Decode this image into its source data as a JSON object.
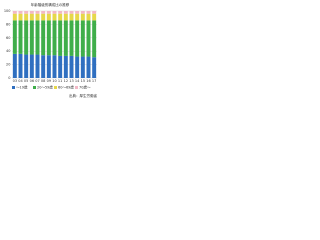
{
  "chart_data": {
    "type": "stacked-bar",
    "title": "年齢階級別構成比の推移",
    "categories": [
      "03",
      "04",
      "05",
      "06",
      "07",
      "08",
      "09",
      "10",
      "11",
      "12",
      "13",
      "14",
      "15",
      "16",
      "17"
    ],
    "series": [
      {
        "name": "〜19歳",
        "color": "#2f6fc0",
        "values": [
          36,
          36,
          35,
          35,
          35,
          34,
          34,
          34,
          33,
          33,
          33,
          32,
          32,
          32,
          31
        ]
      },
      {
        "name": "20〜59歳",
        "color": "#3fae4a",
        "values": [
          50,
          50,
          51,
          51,
          51,
          52,
          52,
          52,
          53,
          53,
          53,
          54,
          54,
          54,
          55
        ]
      },
      {
        "name": "60〜69歳",
        "color": "#e6d84a",
        "values": [
          10,
          10,
          10,
          10,
          10,
          10,
          10,
          10,
          10,
          10,
          10,
          10,
          10,
          10,
          10
        ]
      },
      {
        "name": "70歳〜",
        "color": "#f2b8c6",
        "values": [
          4,
          4,
          4,
          4,
          4,
          4,
          4,
          4,
          4,
          4,
          4,
          4,
          4,
          4,
          4
        ]
      }
    ],
    "ylim": [
      0,
      100
    ],
    "yticks": [
      0,
      20,
      40,
      60,
      80,
      100
    ],
    "source": "出典：厚生労働省"
  }
}
